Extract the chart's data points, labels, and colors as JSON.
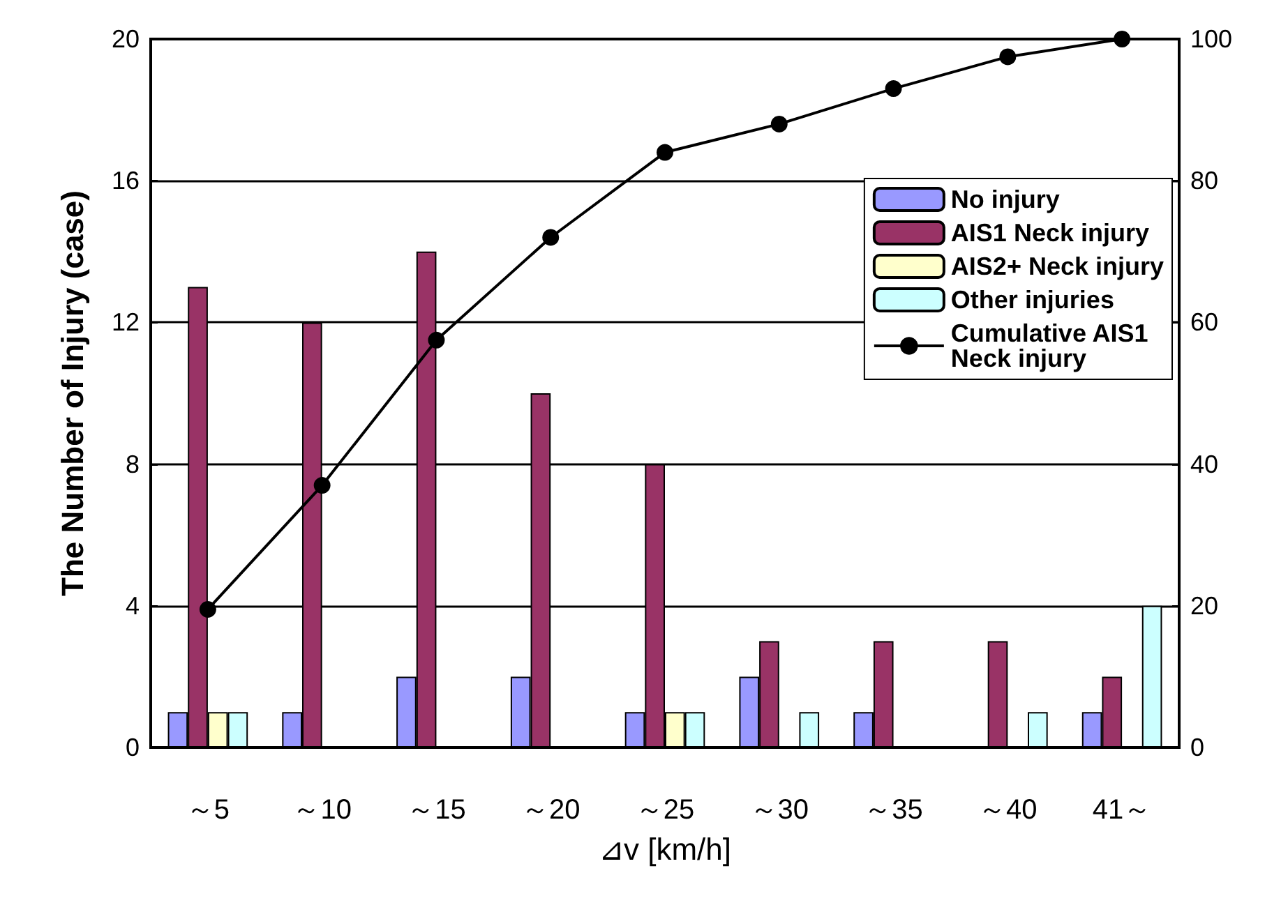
{
  "chart_data": {
    "type": "bar",
    "xlabel": "⊿v [km/h]",
    "ylabel": "The Number of Injury (case)",
    "categories": [
      "～5",
      "～10",
      "～15",
      "～20",
      "～25",
      "～30",
      "～35",
      "～40",
      "41～"
    ],
    "series": [
      {
        "name": "No injury",
        "color": "#9999ff",
        "values": [
          1,
          1,
          2,
          2,
          1,
          2,
          1,
          0,
          1
        ]
      },
      {
        "name": "AIS1 Neck injury",
        "color": "#993366",
        "values": [
          13,
          12,
          14,
          10,
          8,
          3,
          3,
          3,
          2
        ]
      },
      {
        "name": "AIS2+ Neck injury",
        "color": "#ffffcc",
        "values": [
          1,
          0,
          0,
          0,
          1,
          0,
          0,
          0,
          0
        ]
      },
      {
        "name": "Other injuries",
        "color": "#ccffff",
        "values": [
          1,
          0,
          0,
          0,
          1,
          1,
          0,
          1,
          4
        ]
      },
      {
        "name": "Cumulative AIS1 Neck injury",
        "type": "line",
        "axis": "y2",
        "color": "#000000",
        "marker": "circle",
        "line_style": "solid",
        "values": [
          19.5,
          37,
          57.5,
          72,
          84,
          88,
          93,
          97.5,
          100
        ]
      }
    ],
    "ylim": [
      0,
      20
    ],
    "yticks": [
      0,
      4,
      8,
      12,
      16,
      20
    ],
    "y2lim": [
      0,
      100
    ],
    "y2ticks": [
      0,
      20,
      40,
      60,
      80,
      100
    ],
    "grid": "y",
    "legend": "top right"
  }
}
